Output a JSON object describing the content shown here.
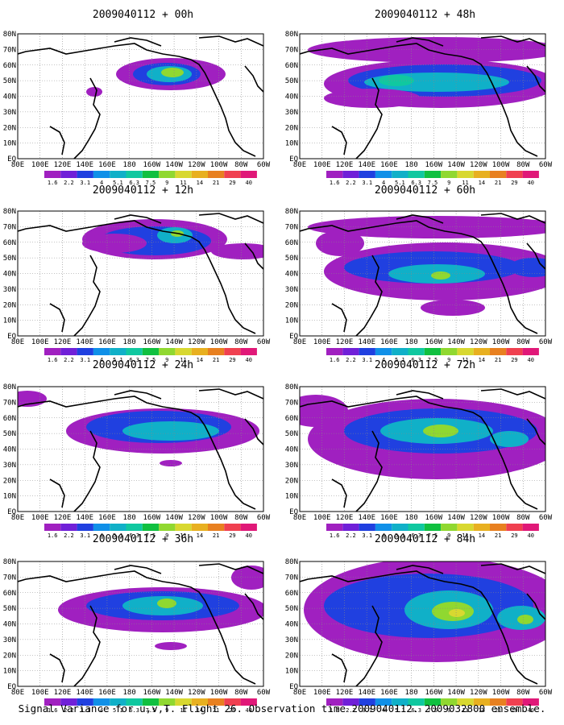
{
  "panels": [
    {
      "title": "2009040112 + 00h"
    },
    {
      "title": "2009040112 + 48h"
    },
    {
      "title": "2009040112 + 12h"
    },
    {
      "title": "2009040112 + 60h"
    },
    {
      "title": "2009040112 + 24h"
    },
    {
      "title": "2009040112 + 72h"
    },
    {
      "title": "2009040112 + 36h"
    },
    {
      "title": "2009040112 + 84h"
    }
  ],
  "lat_labels": [
    "80N",
    "70N",
    "60N",
    "50N",
    "40N",
    "30N",
    "20N",
    "10N",
    "EQ"
  ],
  "lon_labels": [
    "80E",
    "100E",
    "120E",
    "140E",
    "160E",
    "180",
    "160W",
    "140W",
    "120W",
    "100W",
    "80W",
    "60W"
  ],
  "colorbar": {
    "levels": [
      "1.6",
      "2.2",
      "3.1",
      "4",
      "5.1",
      "6.3",
      "7.5",
      "9",
      "11",
      "14",
      "21",
      "29",
      "40"
    ],
    "colors": [
      "#a020c0",
      "#7020d8",
      "#2040e0",
      "#1090e8",
      "#10b0c8",
      "#10c8a0",
      "#10c040",
      "#90d830",
      "#d8d830",
      "#e8b020",
      "#e88020",
      "#f04050",
      "#e01878"
    ]
  },
  "caption": "Signal Variance for u,v,T. Flight 26. Observation time 2009040112. 2009032800 ensemble."
}
